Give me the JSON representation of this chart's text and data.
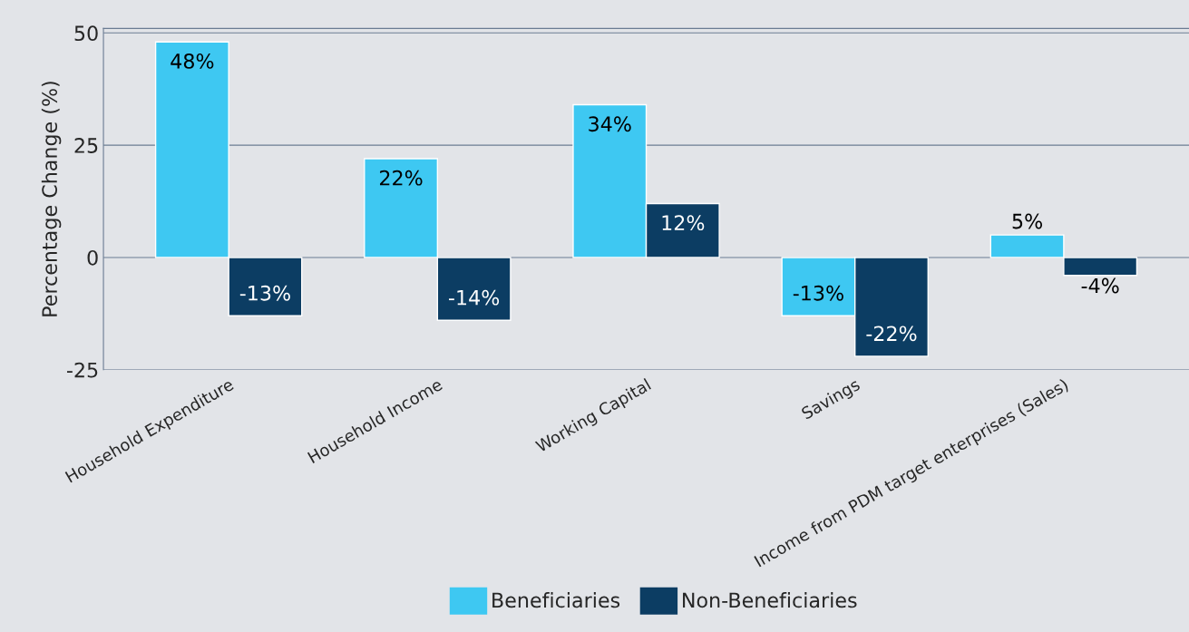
{
  "chart_data": {
    "type": "bar",
    "ylabel": "Percentage Change (%)",
    "categories": [
      "Household Expenditure",
      "Household Income",
      "Working Capital",
      "Savings",
      "Income from PDM target enterprises (Sales)"
    ],
    "series": [
      {
        "name": "Beneficiaries",
        "color": "#3ec8f2",
        "values": [
          48,
          22,
          34,
          -13,
          5
        ],
        "value_labels": [
          "48%",
          "22%",
          "34%",
          "-13%",
          "5%"
        ]
      },
      {
        "name": "Non-Beneficiaries",
        "color": "#0c3d63",
        "values": [
          -13,
          -14,
          12,
          -22,
          -4
        ],
        "value_labels": [
          "-13%",
          "-14%",
          "12%",
          "-22%",
          "-4%"
        ]
      }
    ],
    "ylim": [
      -25,
      51
    ],
    "yticks": [
      -25,
      0,
      25,
      50
    ],
    "grid": "y",
    "legend": "bottom"
  }
}
